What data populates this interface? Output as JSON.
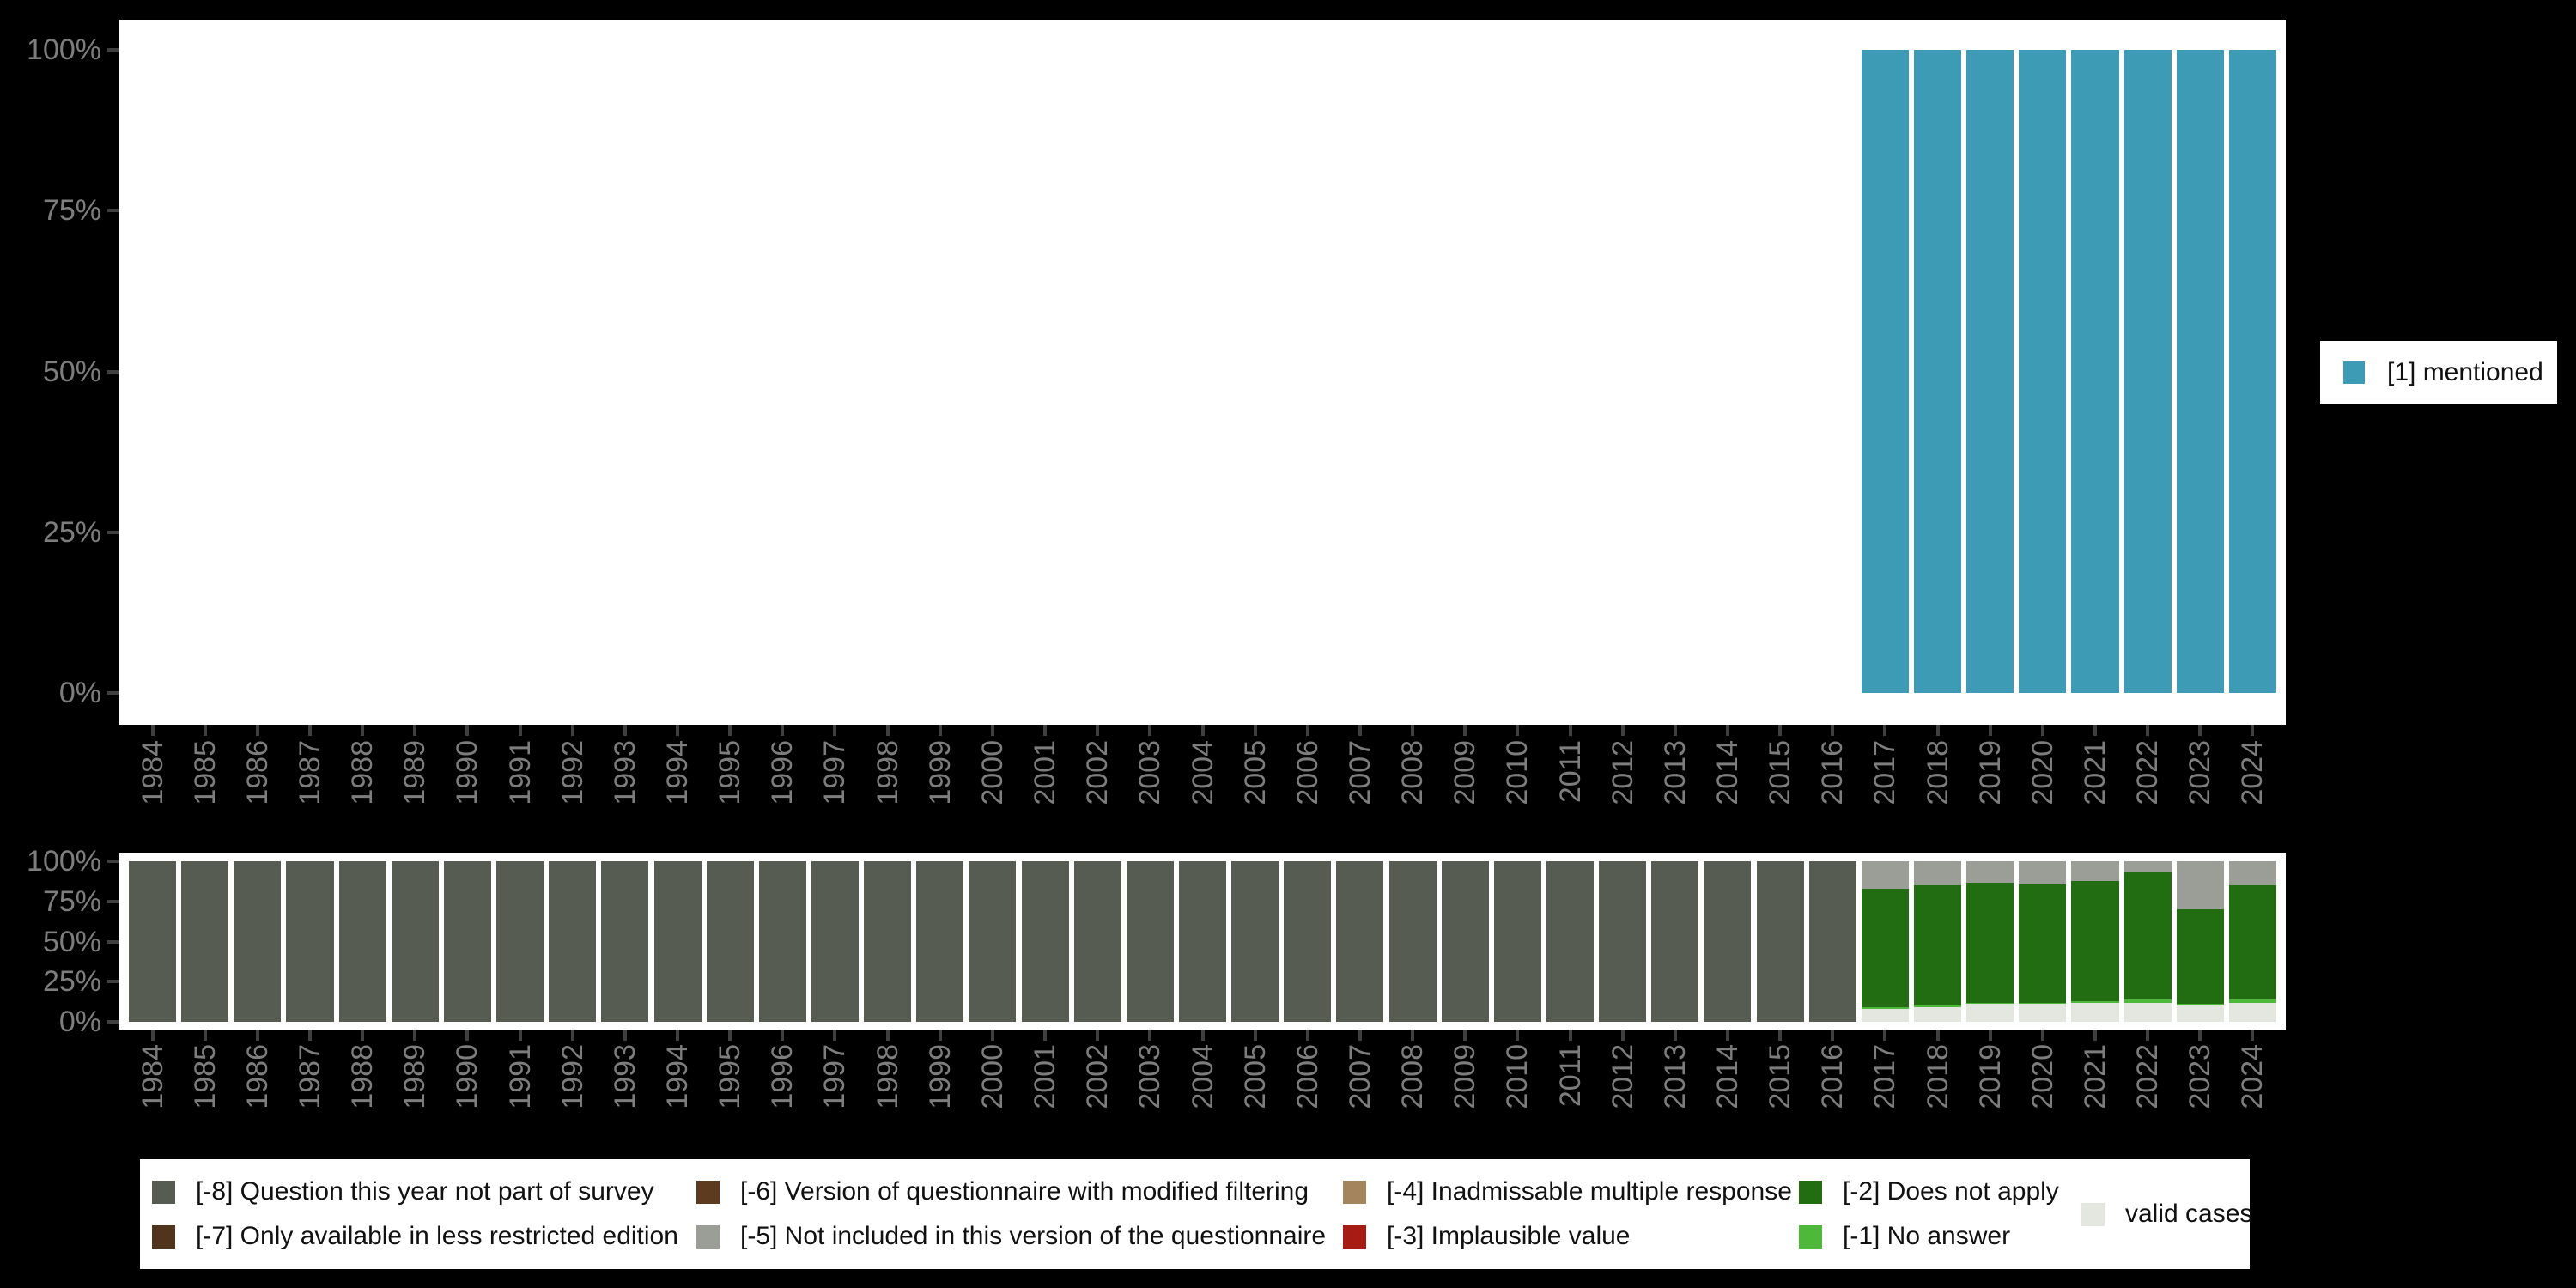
{
  "figure": {
    "background_color": "#000000",
    "plot_background_color": "#ffffff",
    "axis_text_color": "#7d7d7d",
    "tick_color": "#3f3f3f"
  },
  "top_legend": {
    "label": "[1] mentioned",
    "color": "#3d9bb5"
  },
  "missing_legend": {
    "columns": [
      [
        {
          "label": "[-8] Question this year not part of survey",
          "color": "#565c52"
        },
        {
          "label": "[-7] Only available in less restricted edition",
          "color": "#50341c"
        }
      ],
      [
        {
          "label": "[-6] Version of questionnaire with modified filtering",
          "color": "#5d3b1e"
        },
        {
          "label": "[-5] Not included in this version of the questionnaire",
          "color": "#9a9e96"
        }
      ],
      [
        {
          "label": "[-4] Inadmissable multiple response",
          "color": "#a3845c"
        },
        {
          "label": "[-3] Implausible value",
          "color": "#a61c15"
        }
      ],
      [
        {
          "label": "[-2] Does not apply",
          "color": "#226d12"
        },
        {
          "label": "[-1] No answer",
          "color": "#4db83a"
        }
      ],
      [
        {
          "label": "valid cases",
          "color": "#e4e7e0"
        }
      ]
    ]
  },
  "chart_data": [
    {
      "type": "bar",
      "stacked": true,
      "title": "",
      "xlabel": "",
      "ylabel": "",
      "ylim": [
        0,
        100
      ],
      "yticks": [
        "100%",
        "75%",
        "50%",
        "25%",
        "0%"
      ],
      "grid": false,
      "legend_position": "right",
      "categories": [
        "1984",
        "1985",
        "1986",
        "1987",
        "1988",
        "1989",
        "1990",
        "1991",
        "1992",
        "1993",
        "1994",
        "1995",
        "1996",
        "1997",
        "1998",
        "1999",
        "2000",
        "2001",
        "2002",
        "2003",
        "2004",
        "2005",
        "2006",
        "2007",
        "2008",
        "2009",
        "2010",
        "2011",
        "2012",
        "2013",
        "2014",
        "2015",
        "2016",
        "2017",
        "2018",
        "2019",
        "2020",
        "2021",
        "2022",
        "2023",
        "2024"
      ],
      "series": [
        {
          "name": "[1] mentioned",
          "color": "#3d9bb5",
          "values": [
            null,
            null,
            null,
            null,
            null,
            null,
            null,
            null,
            null,
            null,
            null,
            null,
            null,
            null,
            null,
            null,
            null,
            null,
            null,
            null,
            null,
            null,
            null,
            null,
            null,
            null,
            null,
            null,
            null,
            null,
            null,
            null,
            null,
            100,
            100,
            100,
            100,
            100,
            100,
            100,
            100
          ]
        }
      ]
    },
    {
      "type": "bar",
      "stacked": true,
      "title": "",
      "xlabel": "",
      "ylabel": "",
      "ylim": [
        0,
        100
      ],
      "yticks": [
        "100%",
        "75%",
        "50%",
        "25%",
        "0%"
      ],
      "grid": false,
      "legend_position": "bottom",
      "categories": [
        "1984",
        "1985",
        "1986",
        "1987",
        "1988",
        "1989",
        "1990",
        "1991",
        "1992",
        "1993",
        "1994",
        "1995",
        "1996",
        "1997",
        "1998",
        "1999",
        "2000",
        "2001",
        "2002",
        "2003",
        "2004",
        "2005",
        "2006",
        "2007",
        "2008",
        "2009",
        "2010",
        "2011",
        "2012",
        "2013",
        "2014",
        "2015",
        "2016",
        "2017",
        "2018",
        "2019",
        "2020",
        "2021",
        "2022",
        "2023",
        "2024"
      ],
      "series": [
        {
          "name": "[-8] Question this year not part of survey",
          "color": "#565c52",
          "values": [
            100,
            100,
            100,
            100,
            100,
            100,
            100,
            100,
            100,
            100,
            100,
            100,
            100,
            100,
            100,
            100,
            100,
            100,
            100,
            100,
            100,
            100,
            100,
            100,
            100,
            100,
            100,
            100,
            100,
            100,
            100,
            100,
            100,
            0,
            0,
            0,
            0,
            0,
            0,
            0,
            0
          ]
        },
        {
          "name": "[-5] Not included in this version of the questionnaire",
          "color": "#9a9e96",
          "values": [
            0,
            0,
            0,
            0,
            0,
            0,
            0,
            0,
            0,
            0,
            0,
            0,
            0,
            0,
            0,
            0,
            0,
            0,
            0,
            0,
            0,
            0,
            0,
            0,
            0,
            0,
            0,
            0,
            0,
            0,
            0,
            0,
            0,
            17,
            15,
            13,
            14,
            12,
            7,
            30,
            15
          ]
        },
        {
          "name": "[-2] Does not apply",
          "color": "#226d12",
          "values": [
            0,
            0,
            0,
            0,
            0,
            0,
            0,
            0,
            0,
            0,
            0,
            0,
            0,
            0,
            0,
            0,
            0,
            0,
            0,
            0,
            0,
            0,
            0,
            0,
            0,
            0,
            0,
            0,
            0,
            0,
            0,
            0,
            0,
            74,
            75,
            75,
            74,
            75,
            79,
            59,
            71
          ]
        },
        {
          "name": "[-1] No answer",
          "color": "#4db83a",
          "values": [
            0,
            0,
            0,
            0,
            0,
            0,
            0,
            0,
            0,
            0,
            0,
            0,
            0,
            0,
            0,
            0,
            0,
            0,
            0,
            0,
            0,
            0,
            0,
            0,
            0,
            0,
            0,
            0,
            0,
            0,
            0,
            0,
            0,
            1,
            1,
            1,
            1,
            1,
            2,
            1,
            2
          ]
        },
        {
          "name": "valid cases",
          "color": "#e4e7e0",
          "values": [
            0,
            0,
            0,
            0,
            0,
            0,
            0,
            0,
            0,
            0,
            0,
            0,
            0,
            0,
            0,
            0,
            0,
            0,
            0,
            0,
            0,
            0,
            0,
            0,
            0,
            0,
            0,
            0,
            0,
            0,
            0,
            0,
            0,
            8,
            9,
            11,
            11,
            12,
            12,
            10,
            12
          ]
        }
      ]
    }
  ]
}
